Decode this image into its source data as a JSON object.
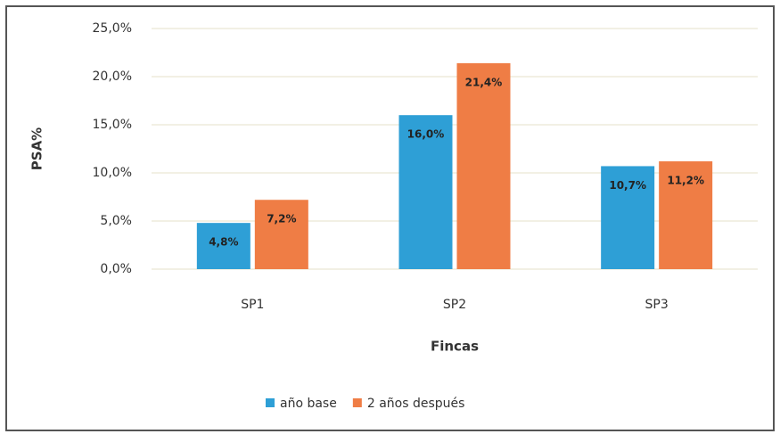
{
  "chart_data": {
    "type": "bar",
    "categories": [
      "SP1",
      "SP2",
      "SP3"
    ],
    "series": [
      {
        "name": "año base",
        "color": "#2e9fd6",
        "values": [
          4.8,
          16.0,
          10.7
        ],
        "value_labels": [
          "4,8%",
          "16,0%",
          "10,7%"
        ]
      },
      {
        "name": "2 años después",
        "color": "#ef7d45",
        "values": [
          7.2,
          21.4,
          11.2
        ],
        "value_labels": [
          "7,2%",
          "21,4%",
          "11,2%"
        ]
      }
    ],
    "ylabel": "PSA%",
    "xlabel": "Fincas",
    "ylim": [
      0,
      25
    ],
    "yticks": [
      {
        "value": 0,
        "label": "0,0%"
      },
      {
        "value": 5,
        "label": "5,0%"
      },
      {
        "value": 10,
        "label": "10,0%"
      },
      {
        "value": 15,
        "label": "15,0%"
      },
      {
        "value": 20,
        "label": "20,0%"
      },
      {
        "value": 25,
        "label": "25,0%"
      }
    ],
    "grid": true,
    "legend": "bottom"
  }
}
